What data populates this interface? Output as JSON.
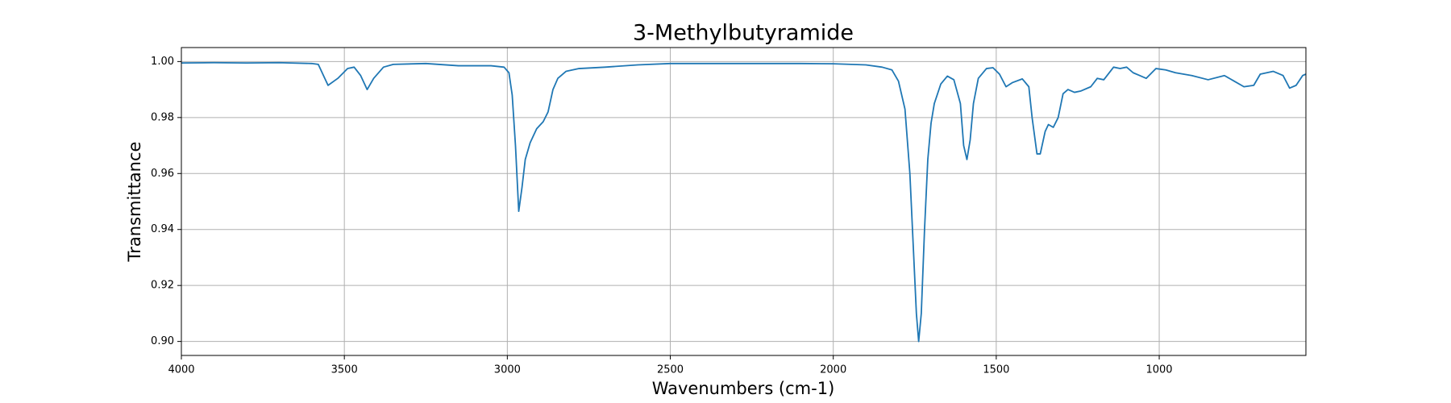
{
  "chart_data": {
    "type": "line",
    "title": "3-Methylbutyramide",
    "x_label": "Wavenumbers (cm-1)",
    "y_label": "Transmittance",
    "xlim": [
      4000,
      550
    ],
    "xticks": [
      4000,
      3500,
      3000,
      2500,
      2000,
      1500,
      1000
    ],
    "ylim": [
      0.895,
      1.005
    ],
    "yticks": [
      {
        "value": 0.9,
        "label": "0.90"
      },
      0.92,
      0.94,
      0.96,
      0.98,
      {
        "value": 1.0,
        "label": "1.00"
      }
    ],
    "grid": true,
    "series": [
      {
        "name": "3-Methylbutyramide",
        "color": "#1f77b4",
        "x": [
          4000,
          3900,
          3800,
          3700,
          3600,
          3580,
          3560,
          3550,
          3520,
          3490,
          3470,
          3450,
          3430,
          3410,
          3380,
          3350,
          3250,
          3150,
          3050,
          3010,
          2995,
          2985,
          2975,
          2965,
          2955,
          2945,
          2930,
          2910,
          2890,
          2875,
          2860,
          2845,
          2820,
          2780,
          2700,
          2600,
          2500,
          2300,
          2100,
          2000,
          1900,
          1850,
          1820,
          1800,
          1780,
          1765,
          1755,
          1745,
          1738,
          1730,
          1720,
          1710,
          1700,
          1690,
          1670,
          1650,
          1630,
          1610,
          1600,
          1590,
          1580,
          1570,
          1555,
          1530,
          1510,
          1490,
          1470,
          1450,
          1420,
          1400,
          1390,
          1375,
          1365,
          1350,
          1340,
          1325,
          1310,
          1295,
          1280,
          1260,
          1240,
          1210,
          1190,
          1170,
          1140,
          1120,
          1100,
          1080,
          1060,
          1040,
          1010,
          980,
          950,
          900,
          850,
          800,
          770,
          740,
          710,
          690,
          650,
          620,
          600,
          580,
          560,
          550
        ],
        "values": [
          0.9995,
          0.9996,
          0.9995,
          0.9996,
          0.9993,
          0.999,
          0.994,
          0.9915,
          0.994,
          0.9975,
          0.998,
          0.995,
          0.99,
          0.994,
          0.998,
          0.999,
          0.9993,
          0.9985,
          0.9985,
          0.998,
          0.996,
          0.988,
          0.97,
          0.9465,
          0.955,
          0.965,
          0.971,
          0.976,
          0.9785,
          0.982,
          0.99,
          0.994,
          0.9965,
          0.9975,
          0.998,
          0.9988,
          0.9993,
          0.9993,
          0.9993,
          0.9992,
          0.9988,
          0.998,
          0.997,
          0.993,
          0.983,
          0.96,
          0.935,
          0.91,
          0.9,
          0.91,
          0.94,
          0.965,
          0.978,
          0.985,
          0.992,
          0.9948,
          0.9935,
          0.985,
          0.97,
          0.965,
          0.972,
          0.985,
          0.994,
          0.9975,
          0.9978,
          0.9955,
          0.991,
          0.9925,
          0.9938,
          0.991,
          0.98,
          0.967,
          0.967,
          0.975,
          0.9775,
          0.9765,
          0.98,
          0.9885,
          0.99,
          0.989,
          0.9895,
          0.991,
          0.994,
          0.9935,
          0.998,
          0.9975,
          0.998,
          0.996,
          0.995,
          0.994,
          0.9975,
          0.997,
          0.996,
          0.995,
          0.9935,
          0.995,
          0.993,
          0.991,
          0.9915,
          0.9955,
          0.9965,
          0.995,
          0.9905,
          0.9915,
          0.995,
          0.9955
        ]
      }
    ]
  }
}
